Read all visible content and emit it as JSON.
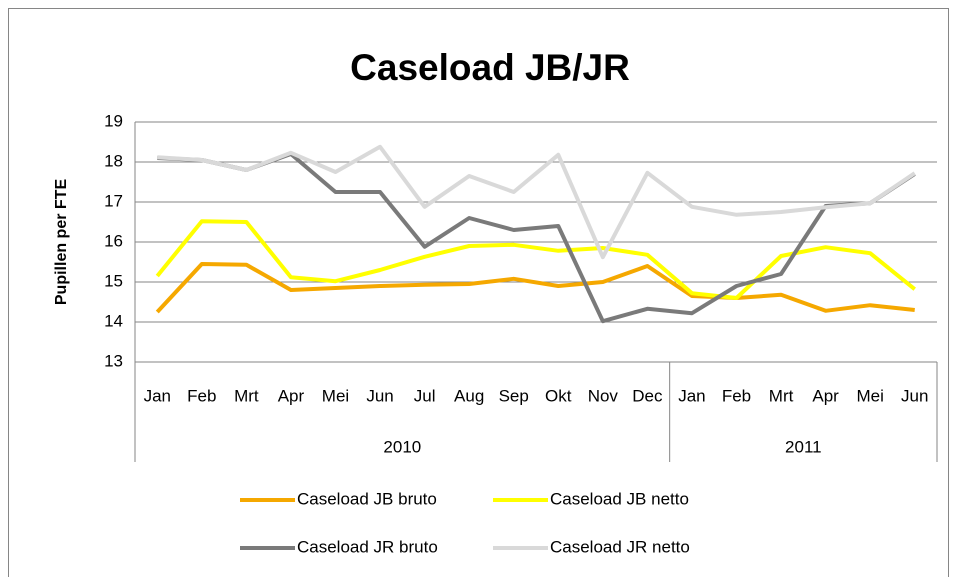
{
  "chart_data": {
    "type": "line",
    "title": "Caseload JB/JR",
    "y_label": "Pupillen per FTE",
    "categories": [
      "Jan",
      "Feb",
      "Mrt",
      "Apr",
      "Mei",
      "Jun",
      "Jul",
      "Aug",
      "Sep",
      "Okt",
      "Nov",
      "Dec",
      "Jan",
      "Feb",
      "Mrt",
      "Apr",
      "Mei",
      "Jun"
    ],
    "x_groups": [
      {
        "label": "2010",
        "span": 12
      },
      {
        "label": "2011",
        "span": 6
      }
    ],
    "ylim": [
      13,
      19
    ],
    "yticks": [
      13,
      14,
      15,
      16,
      17,
      18,
      19
    ],
    "grid": true,
    "series": [
      {
        "name": "Caseload JB bruto",
        "color": "#f5a800",
        "values": [
          14.25,
          15.45,
          15.43,
          14.8,
          14.85,
          14.9,
          14.93,
          14.95,
          15.08,
          14.9,
          15.0,
          15.4,
          14.65,
          14.6,
          14.68,
          14.28,
          14.42,
          14.3
        ]
      },
      {
        "name": "Caseload JB netto",
        "color": "#ffff00",
        "values": [
          15.15,
          16.52,
          16.5,
          15.12,
          15.02,
          15.3,
          15.63,
          15.9,
          15.93,
          15.78,
          15.85,
          15.68,
          14.72,
          14.6,
          15.65,
          15.87,
          15.72,
          14.82
        ]
      },
      {
        "name": "Caseload JR bruto",
        "color": "#7a7a7a",
        "values": [
          18.1,
          18.05,
          17.8,
          18.2,
          17.25,
          17.25,
          15.88,
          16.6,
          16.3,
          16.4,
          14.02,
          14.33,
          14.22,
          14.9,
          15.2,
          16.9,
          16.97,
          17.7
        ]
      },
      {
        "name": "Caseload JR netto",
        "color": "#d9d9d9",
        "values": [
          18.12,
          18.05,
          17.8,
          18.23,
          17.75,
          18.38,
          16.88,
          17.65,
          17.25,
          18.18,
          15.62,
          17.73,
          16.88,
          16.68,
          16.75,
          16.87,
          16.97,
          17.72
        ]
      }
    ]
  }
}
